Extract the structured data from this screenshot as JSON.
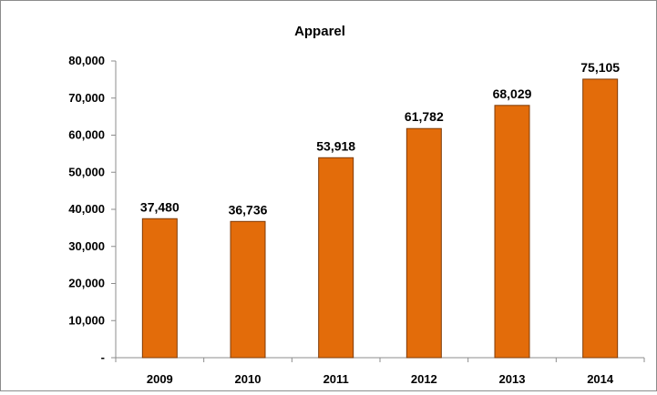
{
  "chart_data": {
    "type": "bar",
    "title": "Apparel",
    "xlabel": "",
    "ylabel": "",
    "categories": [
      "2009",
      "2010",
      "2011",
      "2012",
      "2013",
      "2014"
    ],
    "values": [
      37480,
      36736,
      53918,
      61782,
      68029,
      75105
    ],
    "data_labels": [
      "37,480",
      "36,736",
      "53,918",
      "61,782",
      "68,029",
      "75,105"
    ],
    "y_ticks": [
      0,
      10000,
      20000,
      30000,
      40000,
      50000,
      60000,
      70000,
      80000
    ],
    "y_tick_labels": [
      "-",
      "10,000",
      "20,000",
      "30,000",
      "40,000",
      "50,000",
      "60,000",
      "70,000",
      "80,000"
    ],
    "ylim": [
      0,
      80000
    ],
    "grid": false,
    "legend": "none",
    "bar_color": "#e36c0a",
    "bar_edge_color": "#7f3b08"
  }
}
